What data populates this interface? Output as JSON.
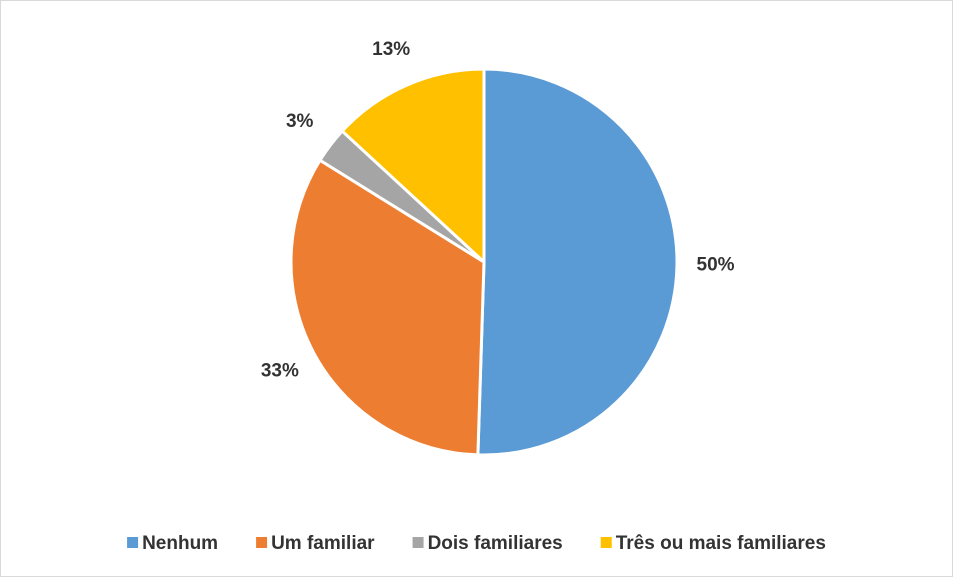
{
  "chart_data": {
    "type": "pie",
    "categories": [
      "Nenhum",
      "Um familiar",
      "Dois familiares",
      "Três ou mais familiares"
    ],
    "values": [
      50,
      33,
      3,
      13
    ],
    "value_labels": [
      "50%",
      "33%",
      "3%",
      "13%"
    ],
    "colors": [
      "#5b9bd5",
      "#ed7d31",
      "#a5a5a5",
      "#ffc000"
    ],
    "legend": "bottom"
  }
}
